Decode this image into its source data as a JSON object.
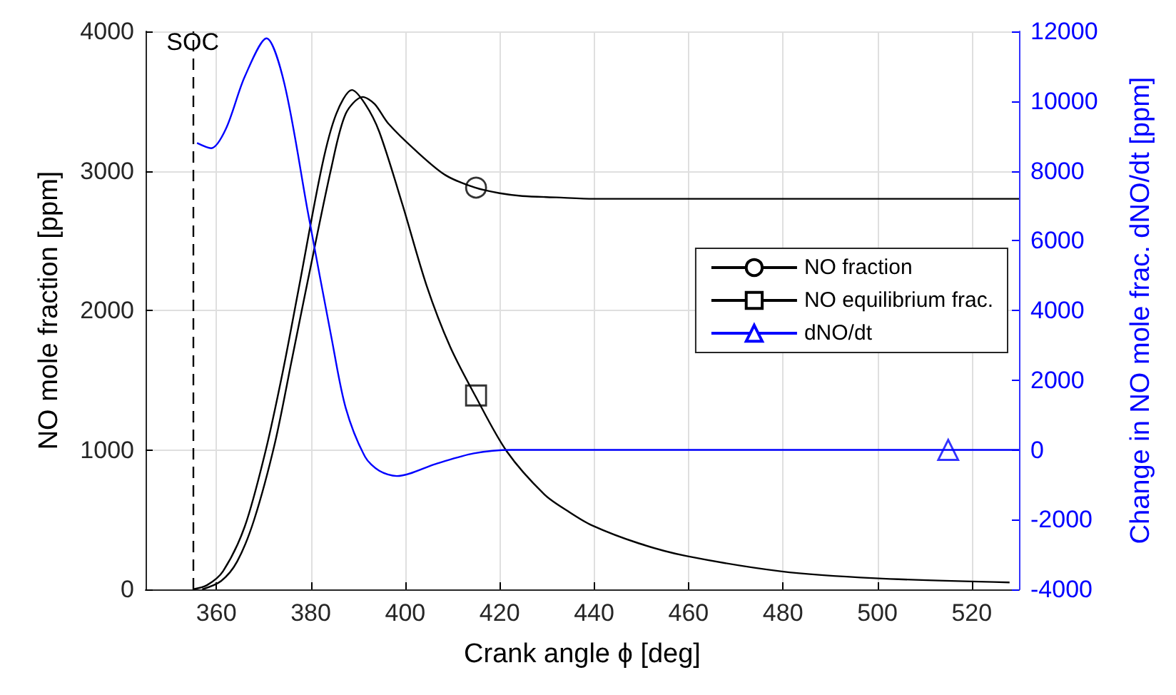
{
  "chart_data": {
    "type": "line",
    "xlabel": "Crank angle ϕ [deg]",
    "ylabel": "NO mole fraction [ppm]",
    "y2label": "Change in NO mole frac. dNO/dt [ppm]",
    "xlim": [
      345,
      530
    ],
    "xticks": [
      360,
      380,
      400,
      420,
      440,
      460,
      480,
      500,
      520
    ],
    "ylim": [
      0,
      4000
    ],
    "yticks": [
      0,
      1000,
      2000,
      3000,
      4000
    ],
    "y2lim": [
      -4000,
      12000
    ],
    "y2ticks": [
      -4000,
      -2000,
      0,
      2000,
      4000,
      6000,
      8000,
      10000,
      12000
    ],
    "grid": true,
    "legend": "right",
    "line_style": "solid",
    "ref_lines": [
      {
        "axis": "x",
        "value": 355,
        "label": "SOC",
        "color": "#000000",
        "line_style": "dashed"
      }
    ],
    "series": [
      {
        "name": "NO fraction",
        "color": "#000000",
        "x": [
          357,
          361,
          364.4,
          368,
          372.4,
          376,
          379.4,
          384.4,
          387.4,
          391,
          393.5,
          396.4,
          402.4,
          408.5,
          414.8,
          420,
          424.8,
          432,
          440,
          530
        ],
        "values": [
          0,
          60,
          200,
          500,
          1050,
          1650,
          2220,
          3030,
          3410,
          3530,
          3480,
          3340,
          3140,
          2970,
          2880,
          2840,
          2820,
          2810,
          2800,
          2800
        ]
      },
      {
        "name": "NO equilibrium frac.",
        "color": "#000000",
        "x": [
          355,
          358,
          361.4,
          366,
          370.4,
          374,
          377.4,
          382.4,
          385.4,
          388.7,
          391.5,
          394.5,
          399.4,
          404.5,
          409.5,
          414.8,
          421.5,
          429.5,
          434.5,
          439.5,
          449.5,
          459.5,
          479.5,
          499.6,
          528
        ],
        "values": [
          0,
          30,
          130,
          450,
          990,
          1550,
          2150,
          3040,
          3410,
          3580,
          3480,
          3280,
          2760,
          2180,
          1740,
          1390,
          990,
          680,
          560,
          460,
          330,
          240,
          130,
          80,
          50
        ]
      },
      {
        "name": "dNO/dt",
        "color": "#0000ff",
        "axis": "y2",
        "x": [
          355.9,
          358.9,
          362,
          366,
          370.6,
          374.4,
          379.4,
          384.4,
          387.4,
          391.5,
          394.5,
          398.2,
          406.5,
          414.5,
          422.5,
          530
        ],
        "values": [
          8800,
          8650,
          9200,
          10700,
          11800,
          10500,
          6800,
          3200,
          1200,
          -200,
          -600,
          -750,
          -400,
          -100,
          0,
          0
        ]
      },
      {
        "type": "scatter",
        "color": "#000000",
        "marker": "circle",
        "x": [
          415
        ],
        "values": [
          2880
        ]
      },
      {
        "type": "scatter",
        "color": "#000000",
        "marker": "square",
        "x": [
          415
        ],
        "values": [
          1390
        ]
      },
      {
        "type": "scatter",
        "color": "#0000ff",
        "marker": "triangle",
        "axis": "y2",
        "x": [
          515
        ],
        "values": [
          0
        ]
      }
    ]
  }
}
